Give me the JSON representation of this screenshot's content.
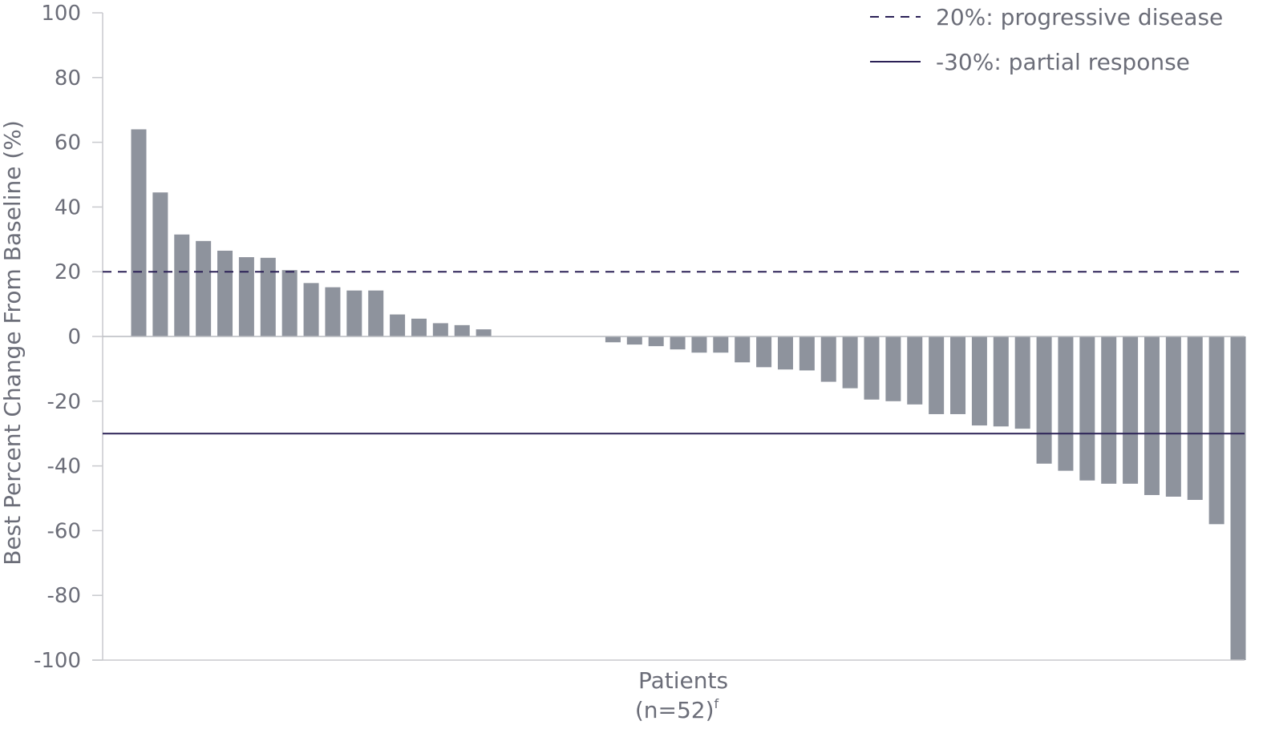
{
  "chart_data": {
    "type": "bar",
    "ylabel": "Best Percent Change From Baseline (%)",
    "xlabel": "Patients",
    "xlabel_sub": "(n=52)",
    "xlabel_sup": "f",
    "ylim": [
      -100,
      100
    ],
    "yticks": [
      "100",
      "80",
      "60",
      "40",
      "20",
      "0",
      "-20",
      "-40",
      "-60",
      "-80",
      "-100"
    ],
    "ytick_values": [
      100,
      80,
      60,
      40,
      20,
      0,
      -20,
      -40,
      -60,
      -80,
      -100
    ],
    "bar_color": "#8e939d",
    "values": [
      64,
      44.5,
      31.5,
      29.5,
      26.5,
      24.5,
      24.3,
      20.5,
      16.5,
      15.2,
      14.2,
      14.2,
      6.8,
      5.5,
      4.1,
      3.5,
      2.2,
      0,
      0,
      0,
      0,
      0,
      -1.8,
      -2.5,
      -3,
      -4,
      -5,
      -5,
      -8,
      -9.5,
      -10.2,
      -10.5,
      -14,
      -16,
      -19.5,
      -20,
      -21,
      -24,
      -24,
      -27.5,
      -27.8,
      -28.5,
      -39.3,
      -41.5,
      -44.5,
      -45.5,
      -45.5,
      -49,
      -49.5,
      -50.5,
      -58,
      -100
    ],
    "reference_lines": [
      {
        "value": 20,
        "style": "dashed",
        "color": "#2b2156",
        "label": "20%: progressive disease"
      },
      {
        "value": -30,
        "style": "solid",
        "color": "#2b2156",
        "label": "-30%: partial response"
      }
    ],
    "legend_position": "top-right",
    "grid": false
  }
}
